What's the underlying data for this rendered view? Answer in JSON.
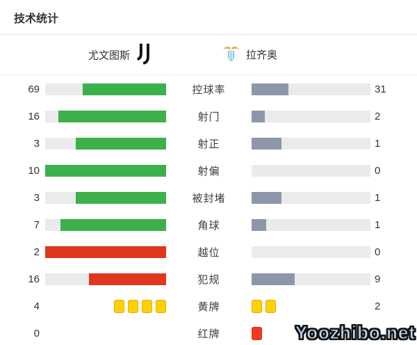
{
  "title": "技术统计",
  "header": {
    "home_team": {
      "name": "尤文图斯",
      "logo_icon": "juventus-logo-icon"
    },
    "away_team": {
      "name": "拉齐奥",
      "logo_icon": "lazio-logo-icon"
    }
  },
  "colors": {
    "green": "#3cb04a",
    "red": "#e1371e",
    "away": "#8c98a9",
    "track": "#ebebeb",
    "yellow_card": "#ffd103",
    "yellow_card_border": "#eaa906",
    "red_card": "#f23a21",
    "red_card_border": "#d52e15"
  },
  "stats": [
    {
      "type": "bar",
      "label": "控球率",
      "home": "69",
      "away": "31",
      "home_color": "green",
      "away_color": "away"
    },
    {
      "type": "bar",
      "label": "射门",
      "home": "16",
      "away": "2",
      "home_color": "green",
      "away_color": "away"
    },
    {
      "type": "bar",
      "label": "射正",
      "home": "3",
      "away": "1",
      "home_color": "green",
      "away_color": "away"
    },
    {
      "type": "bar",
      "label": "射偏",
      "home": "10",
      "away": "0",
      "home_color": "green",
      "away_color": "away"
    },
    {
      "type": "bar",
      "label": "被封堵",
      "home": "3",
      "away": "1",
      "home_color": "green",
      "away_color": "away"
    },
    {
      "type": "bar",
      "label": "角球",
      "home": "7",
      "away": "1",
      "home_color": "green",
      "away_color": "away"
    },
    {
      "type": "bar",
      "label": "越位",
      "home": "2",
      "away": "0",
      "home_color": "red",
      "away_color": "away"
    },
    {
      "type": "bar",
      "label": "犯规",
      "home": "16",
      "away": "9",
      "home_color": "red",
      "away_color": "away"
    },
    {
      "type": "cards",
      "label": "黄牌",
      "home": "4",
      "away": "2",
      "card_color": "yellow"
    },
    {
      "type": "cards",
      "label": "红牌",
      "home": "0",
      "away": "1",
      "card_color": "red"
    }
  ],
  "watermark": "Yoozhibo.net",
  "chart_data": {
    "type": "bar",
    "title": "技术统计",
    "orientation": "horizontal-mirrored",
    "categories": [
      "控球率",
      "射门",
      "射正",
      "射偏",
      "被封堵",
      "角球",
      "越位",
      "犯规",
      "黄牌",
      "红牌"
    ],
    "series": [
      {
        "name": "尤文图斯",
        "values": [
          69,
          16,
          3,
          10,
          3,
          7,
          2,
          16,
          4,
          0
        ]
      },
      {
        "name": "拉齐奥",
        "values": [
          31,
          2,
          1,
          0,
          1,
          1,
          0,
          9,
          2,
          1
        ]
      }
    ],
    "legend_position": "top",
    "grid": false,
    "note": "bar fill length = value / (home+away); yellow/red card rows drawn as card icons"
  }
}
